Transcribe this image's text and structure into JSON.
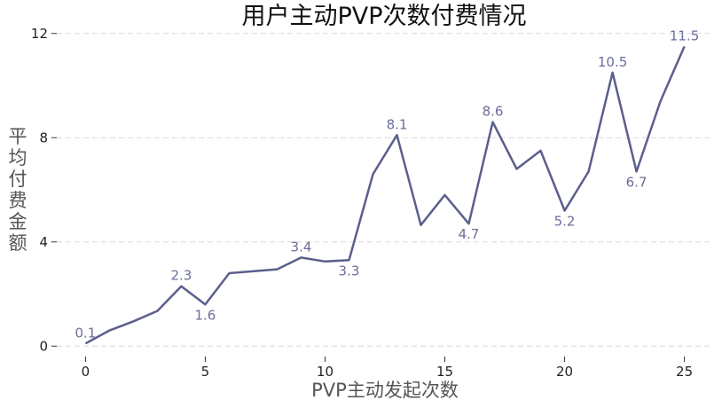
{
  "chart_data": {
    "type": "line",
    "title": "用户主动PVP次数付费情况",
    "xlabel": "PVP主动发起次数",
    "ylabel": "平均付费金额",
    "xlim": [
      -1.2,
      26.2
    ],
    "ylim": [
      -0.4,
      12.4
    ],
    "xticks": [
      0,
      5,
      10,
      15,
      20,
      25
    ],
    "yticks": [
      0,
      4,
      8,
      12
    ],
    "grid": "horizontal dashed",
    "legend": "none",
    "series": [
      {
        "color": "#5b5f8c",
        "x": [
          0,
          1,
          2,
          3,
          4,
          5,
          6,
          8,
          9,
          10,
          11,
          12,
          13,
          14,
          15,
          16,
          17,
          18,
          19,
          20,
          21,
          22,
          23,
          24,
          25
        ],
        "y": [
          0.1,
          0.6,
          0.95,
          1.35,
          2.3,
          1.6,
          2.8,
          2.95,
          3.4,
          3.25,
          3.3,
          6.6,
          8.1,
          4.65,
          5.8,
          4.7,
          8.6,
          6.8,
          7.5,
          5.2,
          6.7,
          10.5,
          6.7,
          9.4,
          11.5
        ]
      }
    ],
    "annotations": [
      {
        "x": 0,
        "y": 0.1,
        "text": "0.1",
        "pos": "above"
      },
      {
        "x": 4,
        "y": 2.3,
        "text": "2.3",
        "pos": "above"
      },
      {
        "x": 5,
        "y": 1.6,
        "text": "1.6",
        "pos": "below"
      },
      {
        "x": 9,
        "y": 3.4,
        "text": "3.4",
        "pos": "above"
      },
      {
        "x": 11,
        "y": 3.3,
        "text": "3.3",
        "pos": "below"
      },
      {
        "x": 13,
        "y": 8.1,
        "text": "8.1",
        "pos": "above"
      },
      {
        "x": 16,
        "y": 4.7,
        "text": "4.7",
        "pos": "below"
      },
      {
        "x": 17,
        "y": 8.6,
        "text": "8.6",
        "pos": "above"
      },
      {
        "x": 20,
        "y": 5.2,
        "text": "5.2",
        "pos": "below"
      },
      {
        "x": 22,
        "y": 10.5,
        "text": "10.5",
        "pos": "above"
      },
      {
        "x": 23,
        "y": 6.7,
        "text": "6.7",
        "pos": "below"
      },
      {
        "x": 25,
        "y": 11.5,
        "text": "11.5",
        "pos": "above"
      }
    ]
  }
}
